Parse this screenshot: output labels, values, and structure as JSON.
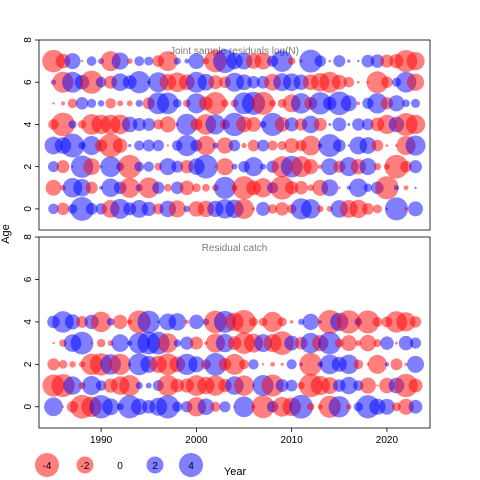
{
  "chart_data": [
    {
      "type": "scatter",
      "variant": "bubble",
      "title": "Joint sample residuals log(N)",
      "ylabel": "Age",
      "x_range": [
        1985,
        2023
      ],
      "ylim": [
        -1,
        8
      ],
      "yticks": [
        0,
        2,
        4,
        6,
        8
      ],
      "ages": [
        0,
        1,
        2,
        3,
        4,
        5,
        6,
        7
      ],
      "colors": {
        "positive": "#0000ff",
        "negative": "#ff0000"
      },
      "opacity": 0.5,
      "residuals_described_as": "pseudo-random residuals in [-4,4], positive blue, negative red"
    },
    {
      "type": "scatter",
      "variant": "bubble",
      "title": "Residual catch",
      "xlabel": "Year",
      "x_range": [
        1985,
        2023
      ],
      "ylim": [
        -1,
        8
      ],
      "xticks": [
        1990,
        2000,
        2010,
        2020
      ],
      "yticks": [
        0,
        2,
        4,
        6,
        8
      ],
      "ages": [
        0,
        1,
        2,
        3,
        4
      ],
      "colors": {
        "positive": "#0000ff",
        "negative": "#ff0000"
      },
      "opacity": 0.5
    }
  ],
  "legend": {
    "values": [
      "-4",
      "-2",
      "0",
      "2",
      "4"
    ],
    "placement": "bottom-left"
  },
  "axis_label_y": "Age",
  "axis_label_x": "Year"
}
